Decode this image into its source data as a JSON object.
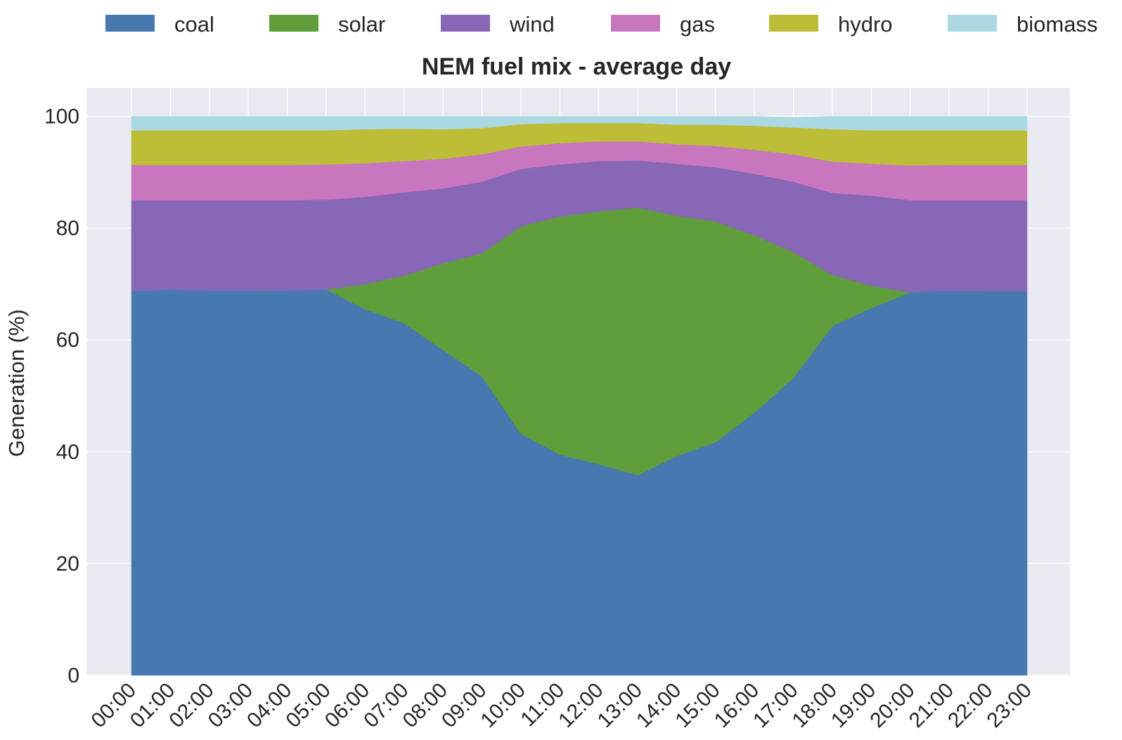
{
  "chart_data": {
    "type": "area",
    "stacked": true,
    "title": "NEM fuel mix - average day",
    "xlabel": "",
    "ylabel": "Generation (%)",
    "ylim": [
      0,
      105
    ],
    "yticks": [
      0,
      20,
      40,
      60,
      80,
      100
    ],
    "grid": true,
    "legend_position": "top",
    "background": "#eaeaf2",
    "categories": [
      "00:00",
      "01:00",
      "02:00",
      "03:00",
      "04:00",
      "05:00",
      "06:00",
      "07:00",
      "08:00",
      "09:00",
      "10:00",
      "11:00",
      "12:00",
      "13:00",
      "14:00",
      "15:00",
      "16:00",
      "17:00",
      "18:00",
      "19:00",
      "20:00",
      "21:00",
      "22:00",
      "23:00"
    ],
    "series": [
      {
        "name": "coal",
        "color": "#4878b0",
        "values": [
          68.7,
          69.0,
          68.9,
          68.8,
          68.9,
          69.0,
          65.5,
          63.0,
          58.2,
          53.5,
          43.2,
          39.5,
          37.8,
          35.8,
          39.2,
          41.7,
          47.0,
          53.2,
          62.5,
          65.7,
          68.5,
          68.8,
          68.7,
          68.7
        ]
      },
      {
        "name": "solar",
        "color": "#5f9e3a",
        "values": [
          0.0,
          0.0,
          0.0,
          0.0,
          0.0,
          0.0,
          4.5,
          8.5,
          15.5,
          22.0,
          37.1,
          42.6,
          45.2,
          47.9,
          43.0,
          39.5,
          31.7,
          22.5,
          9.1,
          4.0,
          0.0,
          0.0,
          0.0,
          0.0
        ]
      },
      {
        "name": "wind",
        "color": "#8867b6",
        "values": [
          16.3,
          16.0,
          16.1,
          16.2,
          16.1,
          16.1,
          15.6,
          14.9,
          13.4,
          12.8,
          10.3,
          9.3,
          9.0,
          8.4,
          9.3,
          9.7,
          11.0,
          12.6,
          14.7,
          16.1,
          16.5,
          16.2,
          16.3,
          16.3
        ]
      },
      {
        "name": "gas",
        "color": "#c876bd",
        "values": [
          6.3,
          6.3,
          6.3,
          6.3,
          6.3,
          6.3,
          6.0,
          5.6,
          5.3,
          4.9,
          4.0,
          3.8,
          3.5,
          3.4,
          3.5,
          3.8,
          4.3,
          4.9,
          5.6,
          5.7,
          6.2,
          6.3,
          6.3,
          6.3
        ]
      },
      {
        "name": "hydro",
        "color": "#bdbd38",
        "values": [
          6.2,
          6.2,
          6.2,
          6.2,
          6.2,
          6.1,
          6.1,
          5.8,
          5.3,
          4.7,
          4.0,
          3.6,
          3.3,
          3.3,
          3.5,
          3.8,
          4.3,
          4.8,
          5.8,
          6.0,
          6.3,
          6.2,
          6.2,
          6.2
        ]
      },
      {
        "name": "biomass",
        "color": "#acd8e3",
        "values": [
          2.5,
          2.5,
          2.5,
          2.5,
          2.5,
          2.5,
          2.3,
          2.2,
          2.3,
          2.1,
          1.4,
          1.2,
          1.2,
          1.2,
          1.5,
          1.5,
          1.7,
          1.8,
          2.3,
          2.5,
          2.5,
          2.5,
          2.5,
          2.5
        ]
      }
    ]
  }
}
